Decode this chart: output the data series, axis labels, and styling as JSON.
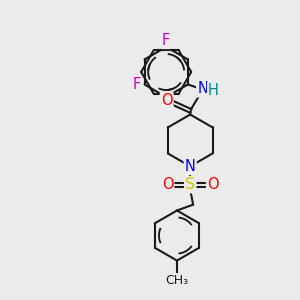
{
  "bg_color": "#ebebeb",
  "bond_color": "#1a1a1a",
  "bond_width": 1.5,
  "atom_colors": {
    "F": "#cc00cc",
    "O": "#ff0000",
    "N": "#0000ff",
    "H": "#008b8b",
    "S": "#cccc00",
    "C": "#1a1a1a"
  },
  "font_size": 10.5
}
